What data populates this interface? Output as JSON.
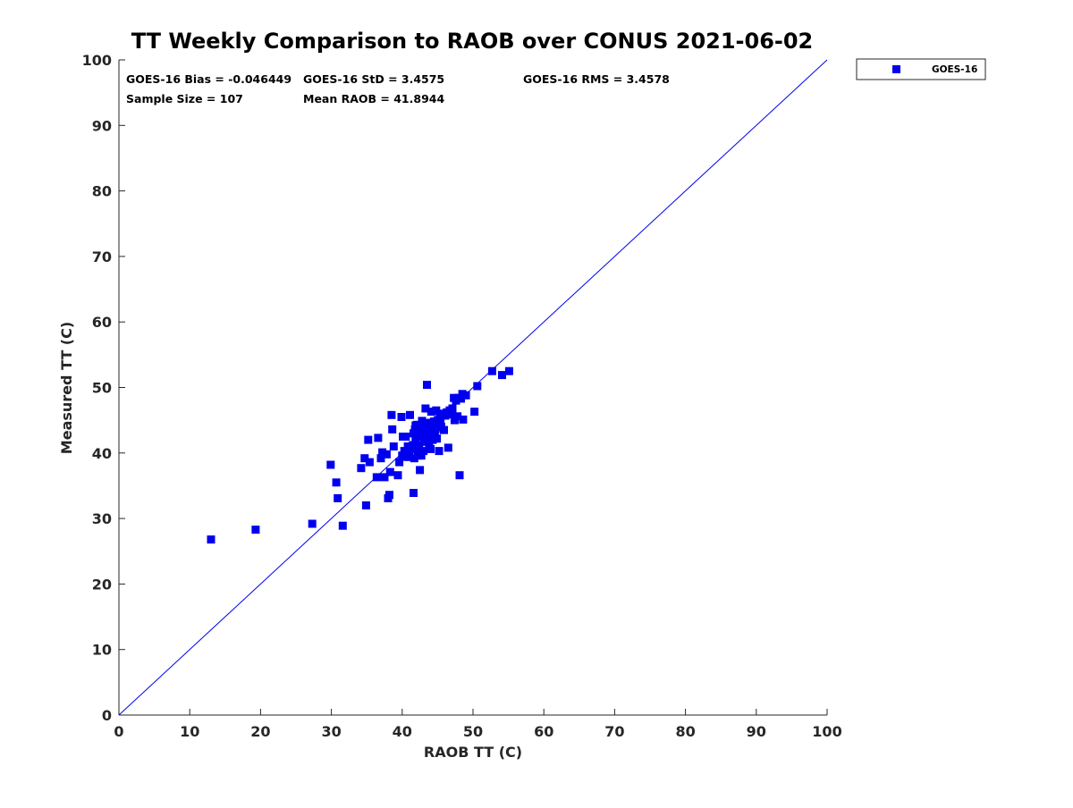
{
  "chart_data": {
    "type": "scatter",
    "title": "TT Weekly Comparison to RAOB over CONUS 2021-06-02",
    "xlabel": "RAOB TT (C)",
    "ylabel": "Measured TT (C)",
    "xlim": [
      0,
      100
    ],
    "ylim": [
      0,
      100
    ],
    "xticks": [
      0,
      10,
      20,
      30,
      40,
      50,
      60,
      70,
      80,
      90,
      100
    ],
    "yticks": [
      0,
      10,
      20,
      30,
      40,
      50,
      60,
      70,
      80,
      90,
      100
    ],
    "grid": false,
    "legend_position": "outside-top-right",
    "one_to_one_line": true,
    "stats": {
      "bias": "GOES-16 Bias = -0.046449",
      "std": "GOES-16 StD = 3.4575",
      "rms": "GOES-16 RMS = 3.4578",
      "sample_size": "Sample Size = 107",
      "mean_raob": "Mean RAOB = 41.8944"
    },
    "colors": {
      "series": "#0000ee",
      "line": "#0000ee",
      "axis": "#262626"
    },
    "series": [
      {
        "name": "GOES-16",
        "marker": "square",
        "points": [
          [
            13.0,
            26.8
          ],
          [
            19.3,
            28.3
          ],
          [
            27.3,
            29.2
          ],
          [
            29.9,
            38.2
          ],
          [
            30.7,
            35.5
          ],
          [
            30.9,
            33.1
          ],
          [
            31.6,
            28.9
          ],
          [
            34.2,
            37.7
          ],
          [
            34.7,
            39.2
          ],
          [
            34.9,
            32.0
          ],
          [
            35.2,
            42.0
          ],
          [
            35.4,
            38.6
          ],
          [
            36.4,
            36.3
          ],
          [
            36.6,
            42.3
          ],
          [
            37.0,
            39.2
          ],
          [
            37.2,
            40.1
          ],
          [
            37.5,
            36.3
          ],
          [
            37.8,
            39.8
          ],
          [
            38.0,
            33.1
          ],
          [
            38.2,
            33.6
          ],
          [
            38.3,
            37.1
          ],
          [
            38.5,
            45.8
          ],
          [
            38.6,
            43.6
          ],
          [
            38.8,
            41.0
          ],
          [
            39.4,
            36.6
          ],
          [
            39.6,
            38.6
          ],
          [
            39.9,
            45.5
          ],
          [
            40.0,
            39.6
          ],
          [
            40.1,
            42.5
          ],
          [
            40.3,
            40.3
          ],
          [
            40.5,
            42.5
          ],
          [
            40.6,
            39.4
          ],
          [
            40.8,
            41.0
          ],
          [
            41.0,
            39.4
          ],
          [
            41.1,
            45.8
          ],
          [
            41.3,
            40.6
          ],
          [
            41.5,
            41.2
          ],
          [
            41.6,
            33.9
          ],
          [
            41.7,
            39.2
          ],
          [
            41.8,
            43.6
          ],
          [
            41.9,
            42.0
          ],
          [
            42.0,
            40.6
          ],
          [
            42.1,
            44.3
          ],
          [
            42.2,
            39.6
          ],
          [
            42.3,
            43.0
          ],
          [
            42.4,
            41.2
          ],
          [
            42.5,
            37.4
          ],
          [
            42.6,
            42.5
          ],
          [
            42.7,
            39.6
          ],
          [
            42.8,
            44.9
          ],
          [
            42.9,
            43.2
          ],
          [
            43.0,
            40.3
          ],
          [
            43.1,
            42.2
          ],
          [
            43.2,
            43.9
          ],
          [
            43.3,
            46.8
          ],
          [
            43.4,
            41.7
          ],
          [
            43.5,
            50.4
          ],
          [
            43.6,
            44.3
          ],
          [
            43.7,
            42.9
          ],
          [
            43.8,
            41.1
          ],
          [
            43.9,
            43.6
          ],
          [
            44.0,
            40.6
          ],
          [
            44.1,
            46.3
          ],
          [
            44.2,
            44.6
          ],
          [
            44.3,
            42.0
          ],
          [
            44.4,
            43.2
          ],
          [
            44.5,
            44.8
          ],
          [
            44.6,
            42.5
          ],
          [
            44.7,
            43.6
          ],
          [
            44.8,
            46.5
          ],
          [
            44.9,
            42.2
          ],
          [
            45.0,
            45.0
          ],
          [
            45.1,
            43.9
          ],
          [
            45.2,
            40.3
          ],
          [
            45.3,
            45.5
          ],
          [
            45.5,
            44.0
          ],
          [
            45.7,
            46.0
          ],
          [
            45.9,
            43.5
          ],
          [
            46.1,
            45.7
          ],
          [
            46.3,
            46.2
          ],
          [
            46.5,
            40.8
          ],
          [
            46.7,
            46.5
          ],
          [
            46.9,
            45.9
          ],
          [
            47.1,
            46.8
          ],
          [
            47.3,
            48.4
          ],
          [
            47.4,
            45.0
          ],
          [
            47.6,
            48.0
          ],
          [
            47.8,
            45.6
          ],
          [
            47.9,
            48.4
          ],
          [
            48.1,
            36.6
          ],
          [
            48.3,
            48.3
          ],
          [
            48.5,
            49.0
          ],
          [
            48.6,
            45.1
          ],
          [
            49.0,
            48.8
          ],
          [
            50.2,
            46.3
          ],
          [
            50.6,
            50.2
          ],
          [
            52.7,
            52.5
          ],
          [
            54.1,
            51.9
          ],
          [
            55.1,
            52.5
          ],
          [
            42.4,
            43.4
          ],
          [
            43.2,
            42.6
          ],
          [
            44.6,
            43.1
          ],
          [
            41.6,
            43.0
          ],
          [
            42.8,
            42.8
          ],
          [
            43.9,
            44.6
          ],
          [
            41.9,
            44.2
          ],
          [
            45.4,
            44.9
          ]
        ]
      }
    ]
  }
}
